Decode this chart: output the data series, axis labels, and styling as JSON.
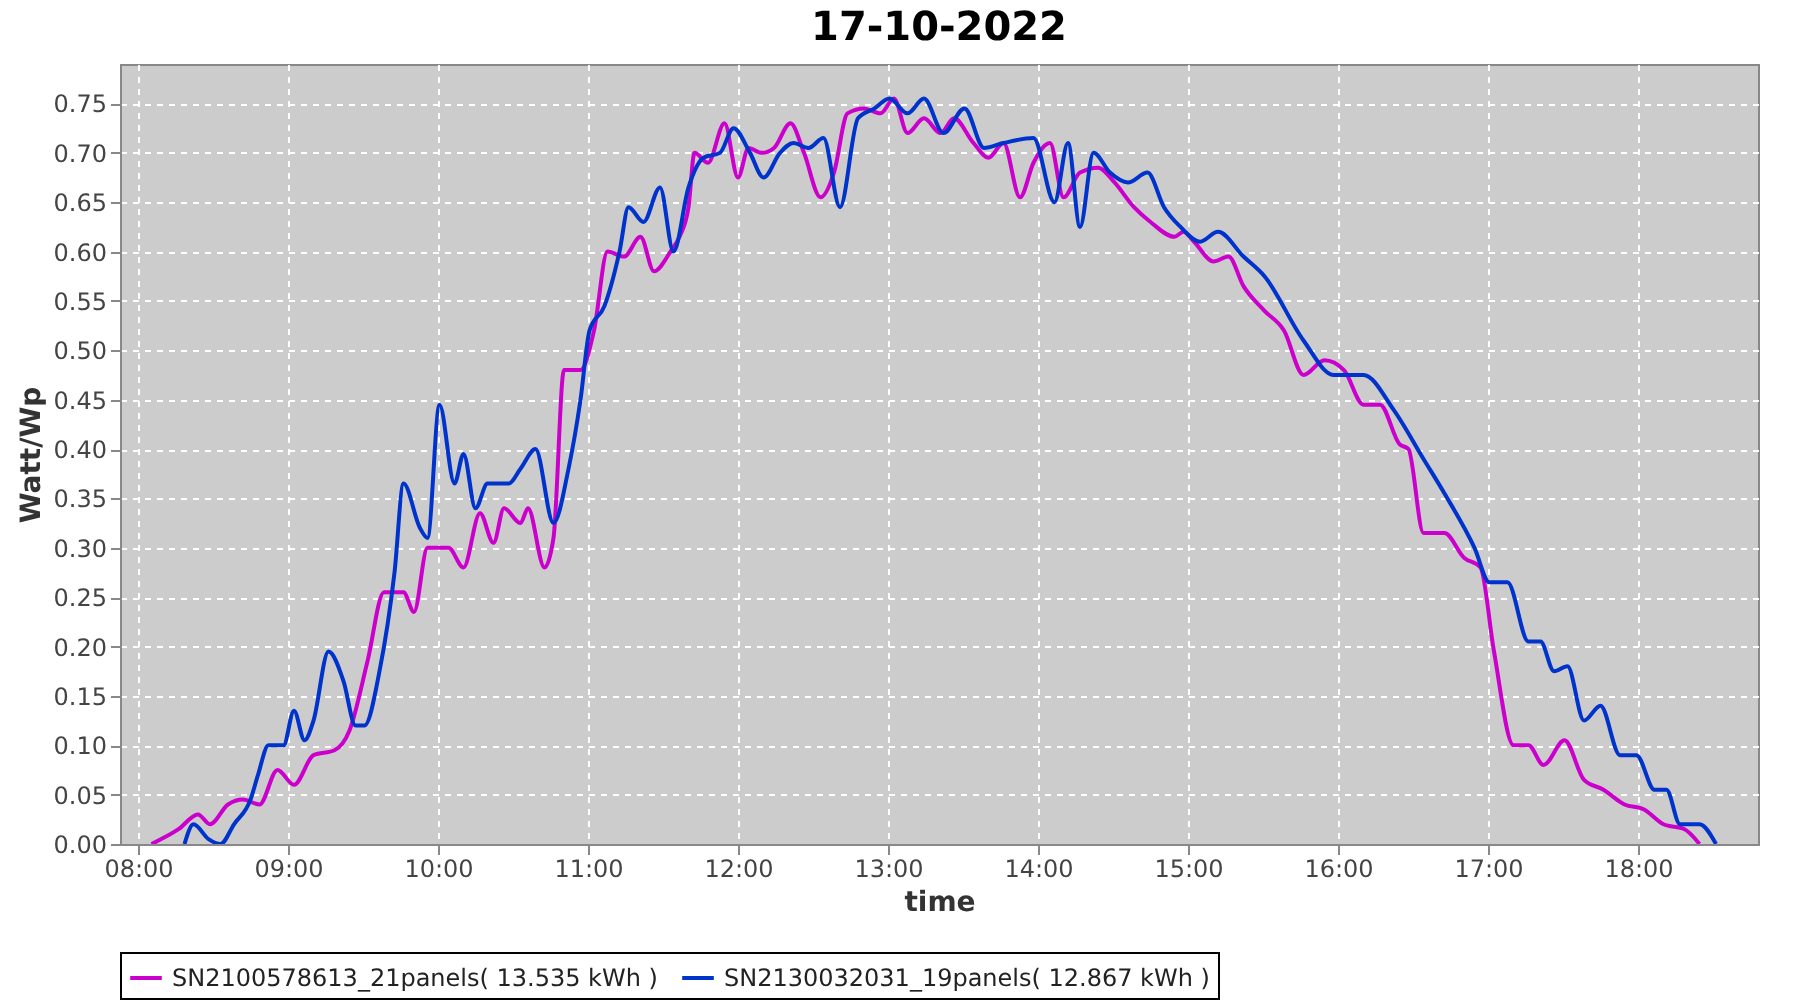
{
  "chart_data": {
    "type": "line",
    "title": "17-10-2022",
    "xlabel": "time",
    "ylabel": "Watt/Wp",
    "xlim": [
      7.88,
      18.8
    ],
    "ylim": [
      0,
      0.79
    ],
    "xticks": [
      {
        "value": 8,
        "label": "08:00"
      },
      {
        "value": 9,
        "label": "09:00"
      },
      {
        "value": 10,
        "label": "10:00"
      },
      {
        "value": 11,
        "label": "11:00"
      },
      {
        "value": 12,
        "label": "12:00"
      },
      {
        "value": 13,
        "label": "13:00"
      },
      {
        "value": 14,
        "label": "14:00"
      },
      {
        "value": 15,
        "label": "15:00"
      },
      {
        "value": 16,
        "label": "16:00"
      },
      {
        "value": 17,
        "label": "17:00"
      },
      {
        "value": 18,
        "label": "18:00"
      }
    ],
    "yticks": [
      {
        "value": 0,
        "label": "0.00"
      },
      {
        "value": 0.05,
        "label": "0.05"
      },
      {
        "value": 0.1,
        "label": "0.10"
      },
      {
        "value": 0.15,
        "label": "0.15"
      },
      {
        "value": 0.2,
        "label": "0.20"
      },
      0.25,
      {
        "value": 0.3,
        "label": "0.30"
      },
      0.35,
      {
        "value": 0.4,
        "label": "0.40"
      },
      0.45,
      {
        "value": 0.5,
        "label": "0.50"
      },
      0.55,
      {
        "value": 0.6,
        "label": "0.60"
      },
      0.65,
      {
        "value": 0.7,
        "label": "0.70"
      },
      0.75
    ],
    "grid": true,
    "legend": "bottom",
    "line_style": "solid",
    "series": [
      {
        "name": "SN2100578613_21panels( 13.535 kWh )",
        "color": "#cc00cc",
        "x": [
          8.09,
          8.27,
          8.4,
          8.48,
          8.6,
          8.7,
          8.81,
          8.93,
          9.04,
          9.17,
          9.31,
          9.41,
          9.53,
          9.64,
          9.77,
          9.84,
          9.93,
          10.07,
          10.17,
          10.28,
          10.37,
          10.44,
          10.55,
          10.6,
          10.71,
          10.77,
          10.84,
          10.95,
          11.04,
          11.13,
          11.24,
          11.35,
          11.44,
          11.55,
          11.61,
          11.67,
          11.71,
          11.8,
          11.91,
          12.0,
          12.07,
          12.16,
          12.24,
          12.35,
          12.44,
          12.55,
          12.64,
          12.73,
          12.84,
          12.95,
          13.04,
          13.13,
          13.24,
          13.35,
          13.44,
          13.57,
          13.67,
          13.77,
          13.88,
          13.97,
          14.08,
          14.17,
          14.28,
          14.4,
          14.51,
          14.64,
          14.75,
          14.91,
          14.97,
          15.04,
          15.17,
          15.27,
          15.37,
          15.51,
          15.64,
          15.77,
          15.91,
          16.04,
          16.17,
          16.28,
          16.41,
          16.47,
          16.57,
          16.71,
          16.84,
          16.95,
          17.04,
          17.17,
          17.27,
          17.37,
          17.51,
          17.64,
          17.77,
          17.91,
          18.04,
          18.17,
          18.31,
          18.41
        ],
        "values": [
          0,
          0.015,
          0.03,
          0.02,
          0.04,
          0.045,
          0.04,
          0.075,
          0.06,
          0.09,
          0.095,
          0.115,
          0.185,
          0.255,
          0.255,
          0.235,
          0.3,
          0.3,
          0.28,
          0.335,
          0.305,
          0.34,
          0.325,
          0.34,
          0.28,
          0.31,
          0.48,
          0.48,
          0.52,
          0.6,
          0.595,
          0.615,
          0.58,
          0.6,
          0.615,
          0.645,
          0.7,
          0.69,
          0.73,
          0.675,
          0.705,
          0.7,
          0.705,
          0.73,
          0.7,
          0.655,
          0.68,
          0.74,
          0.745,
          0.74,
          0.755,
          0.72,
          0.735,
          0.72,
          0.735,
          0.71,
          0.695,
          0.71,
          0.655,
          0.69,
          0.71,
          0.655,
          0.68,
          0.685,
          0.67,
          0.645,
          0.63,
          0.615,
          0.62,
          0.61,
          0.59,
          0.595,
          0.565,
          0.54,
          0.52,
          0.475,
          0.49,
          0.48,
          0.445,
          0.445,
          0.405,
          0.4,
          0.315,
          0.315,
          0.29,
          0.28,
          0.195,
          0.1,
          0.1,
          0.08,
          0.105,
          0.065,
          0.055,
          0.04,
          0.035,
          0.02,
          0.015,
          0
        ]
      },
      {
        "name": "SN2130032031_19panels( 12.867 kWh )",
        "color": "#0033cc",
        "x": [
          8.31,
          8.37,
          8.47,
          8.55,
          8.64,
          8.75,
          8.8,
          8.87,
          8.97,
          9.04,
          9.11,
          9.17,
          9.27,
          9.37,
          9.45,
          9.51,
          9.61,
          9.71,
          9.77,
          9.88,
          9.93,
          10.01,
          10.11,
          10.17,
          10.25,
          10.33,
          10.47,
          10.55,
          10.65,
          10.77,
          10.87,
          10.95,
          11.01,
          11.11,
          11.21,
          11.27,
          11.37,
          11.48,
          11.57,
          11.67,
          11.77,
          11.88,
          11.97,
          12.08,
          12.17,
          12.28,
          12.37,
          12.47,
          12.57,
          12.68,
          12.8,
          12.91,
          13.01,
          13.13,
          13.24,
          13.37,
          13.51,
          13.64,
          13.77,
          13.97,
          14.11,
          14.2,
          14.28,
          14.37,
          14.48,
          14.6,
          14.73,
          14.84,
          14.95,
          15.08,
          15.2,
          15.37,
          15.51,
          15.77,
          15.97,
          16.17,
          16.37,
          16.57,
          16.71,
          16.91,
          17.01,
          17.13,
          17.27,
          17.35,
          17.44,
          17.53,
          17.64,
          17.75,
          17.88,
          17.99,
          18.11,
          18.19,
          18.28,
          18.41,
          18.52
        ],
        "values": [
          0,
          0.02,
          0.005,
          0,
          0.02,
          0.045,
          0.07,
          0.1,
          0.1,
          0.135,
          0.105,
          0.125,
          0.195,
          0.165,
          0.12,
          0.12,
          0.175,
          0.275,
          0.365,
          0.32,
          0.31,
          0.445,
          0.365,
          0.395,
          0.34,
          0.365,
          0.365,
          0.38,
          0.4,
          0.325,
          0.38,
          0.45,
          0.52,
          0.545,
          0.6,
          0.645,
          0.63,
          0.665,
          0.6,
          0.665,
          0.695,
          0.7,
          0.725,
          0.7,
          0.675,
          0.7,
          0.71,
          0.705,
          0.715,
          0.645,
          0.735,
          0.745,
          0.755,
          0.74,
          0.755,
          0.72,
          0.745,
          0.705,
          0.71,
          0.715,
          0.65,
          0.71,
          0.625,
          0.7,
          0.68,
          0.67,
          0.68,
          0.645,
          0.625,
          0.61,
          0.62,
          0.595,
          0.575,
          0.51,
          0.475,
          0.475,
          0.44,
          0.39,
          0.355,
          0.3,
          0.265,
          0.265,
          0.205,
          0.205,
          0.175,
          0.18,
          0.125,
          0.14,
          0.09,
          0.09,
          0.055,
          0.055,
          0.02,
          0.02,
          0
        ]
      }
    ]
  }
}
